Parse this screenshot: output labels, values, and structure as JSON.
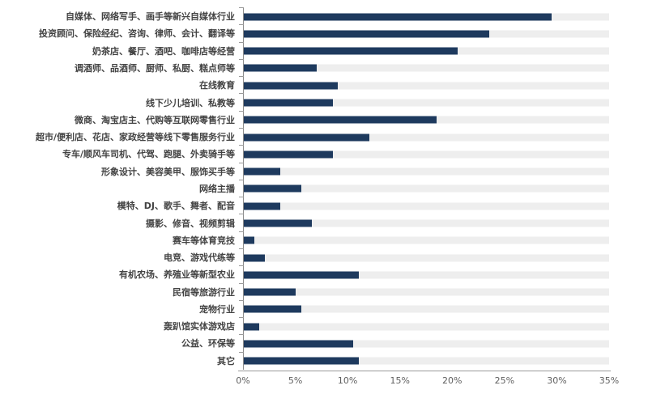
{
  "figure": {
    "background": "#ffffff",
    "bar_color": "#1e3a5e",
    "track_color": "#eeeeee",
    "axis_color": "#9a9a9a",
    "label_color": "#434343"
  },
  "chart_data": {
    "type": "bar",
    "orientation": "horizontal",
    "title": "",
    "xlabel": "",
    "ylabel": "",
    "xlim": [
      0,
      35
    ],
    "unit": "%",
    "grid": false,
    "legend": "none",
    "x_ticks": [
      "0%",
      "5%",
      "10%",
      "15%",
      "20%",
      "25%",
      "30%",
      "35%"
    ],
    "categories": [
      "自媒体、网络写手、画手等新兴自媒体行业",
      "投资顾问、保险经纪、咨询、律师、会计、翻译等",
      "奶茶店、餐厅、酒吧、咖啡店等经营",
      "调酒师、品酒师、厨师、私厨、糕点师等",
      "在线教育",
      "线下少儿培训、私教等",
      "微商、淘宝店主、代购等互联网零售行业",
      "超市/便利店、花店、家政经营等线下零售服务行业",
      "专车/顺风车司机、代驾、跑腿、外卖骑手等",
      "形象设计、美容美甲、服饰买手等",
      "网络主播",
      "模特、DJ、歌手、舞者、配音",
      "摄影、修音、视频剪辑",
      "赛车等体育竞技",
      "电竞、游戏代练等",
      "有机农场、养殖业等新型农业",
      "民宿等旅游行业",
      "宠物行业",
      "轰趴馆实体游戏店",
      "公益、环保等",
      "其它"
    ],
    "values": [
      29.5,
      23.5,
      20.5,
      7,
      9,
      8.5,
      18.5,
      12,
      8.5,
      3.5,
      5.5,
      3.5,
      6.5,
      1,
      2,
      11,
      5,
      5.5,
      1.5,
      10.5,
      11
    ]
  }
}
